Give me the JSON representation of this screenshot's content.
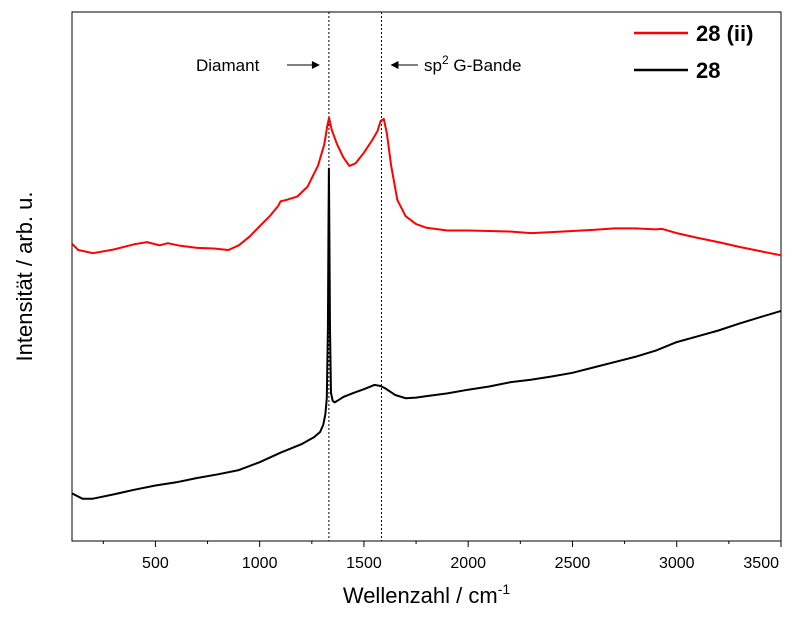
{
  "chart_data": {
    "type": "line",
    "title": "",
    "xlabel": "Wellenzahl / cm",
    "xlabel_sup": "-1",
    "ylabel": "Intensität / arb. u.",
    "xlim": [
      100,
      3500
    ],
    "ylim": [
      0,
      100
    ],
    "xticks": [
      500,
      1000,
      1500,
      2000,
      2500,
      3000,
      3500
    ],
    "xtick_labels": [
      "500",
      "1000",
      "1500",
      "2000",
      "2500",
      "3000",
      "3500"
    ],
    "yticks_shown": false,
    "grid": false,
    "legend_position": "top-right",
    "reference_lines": [
      {
        "x": 1332,
        "style": "dotted"
      },
      {
        "x": 1584,
        "style": "dotted"
      }
    ],
    "annotations": {
      "diamant": "Diamant",
      "sp2_prefix": "sp",
      "sp2_sup": "2",
      "sp2_suffix": " G-Bande"
    },
    "series": [
      {
        "name": "28 (ii)",
        "color": "#ff0000",
        "x": [
          100,
          130,
          200,
          300,
          400,
          460,
          520,
          560,
          620,
          700,
          780,
          850,
          900,
          950,
          1000,
          1050,
          1090,
          1100,
          1130,
          1180,
          1230,
          1280,
          1310,
          1325,
          1333,
          1345,
          1370,
          1400,
          1430,
          1460,
          1500,
          1540,
          1565,
          1580,
          1595,
          1610,
          1630,
          1660,
          1700,
          1750,
          1800,
          1900,
          2000,
          2100,
          2200,
          2300,
          2400,
          2500,
          2600,
          2700,
          2800,
          2900,
          2930,
          3000,
          3100,
          3200,
          3300,
          3400,
          3500
        ],
        "y": [
          56.2,
          55.0,
          54.4,
          55.1,
          56.1,
          56.5,
          55.9,
          56.3,
          55.8,
          55.4,
          55.3,
          55.0,
          55.9,
          57.5,
          59.5,
          61.5,
          63.4,
          64.2,
          64.5,
          65.1,
          67.0,
          71.0,
          75.0,
          78.6,
          80.0,
          77.8,
          75.1,
          72.6,
          70.9,
          71.4,
          73.4,
          75.8,
          77.5,
          79.4,
          79.8,
          77.0,
          71.0,
          64.5,
          61.4,
          59.9,
          59.2,
          58.7,
          58.7,
          58.6,
          58.5,
          58.2,
          58.4,
          58.6,
          58.8,
          59.1,
          59.1,
          58.9,
          59.0,
          58.2,
          57.3,
          56.5,
          55.6,
          54.8,
          54.0
        ]
      },
      {
        "name": "28",
        "color": "#000000",
        "x": [
          100,
          150,
          200,
          300,
          400,
          500,
          600,
          700,
          800,
          900,
          1000,
          1100,
          1200,
          1260,
          1290,
          1305,
          1315,
          1322,
          1327,
          1330,
          1332,
          1334,
          1337,
          1342,
          1350,
          1360,
          1380,
          1400,
          1450,
          1500,
          1550,
          1580,
          1600,
          1650,
          1700,
          1750,
          1800,
          1900,
          2000,
          2100,
          2200,
          2300,
          2400,
          2500,
          2600,
          2700,
          2800,
          2900,
          3000,
          3100,
          3200,
          3300,
          3400,
          3500
        ],
        "y": [
          9.0,
          8.0,
          8.0,
          8.8,
          9.7,
          10.5,
          11.1,
          11.9,
          12.6,
          13.4,
          14.9,
          16.7,
          18.3,
          19.6,
          20.6,
          22.0,
          24.0,
          27.0,
          40.0,
          60.0,
          70.4,
          60.0,
          40.0,
          28.0,
          26.5,
          26.2,
          26.7,
          27.2,
          28.0,
          28.7,
          29.5,
          29.3,
          28.9,
          27.6,
          27.0,
          27.1,
          27.4,
          27.9,
          28.6,
          29.2,
          30.0,
          30.5,
          31.1,
          31.8,
          32.8,
          33.8,
          34.8,
          36.0,
          37.6,
          38.7,
          39.8,
          41.1,
          42.3,
          43.5
        ]
      }
    ]
  }
}
